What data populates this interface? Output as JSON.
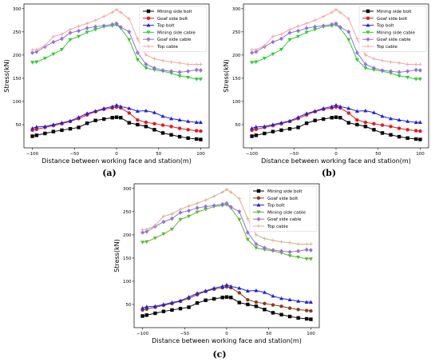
{
  "figure": {
    "panels": [
      "(a)",
      "(b)",
      "(c)"
    ]
  },
  "chart_data": [
    {
      "type": "line",
      "panel_label": "(a)",
      "xlabel": "Distance between working face and station(m)",
      "ylabel": "Stress(kN)",
      "xlim": [
        -110,
        110
      ],
      "ylim": [
        0,
        310
      ],
      "xticks": [
        -100,
        -50,
        0,
        50,
        100
      ],
      "xtick_labels": [
        "−100",
        "−50",
        "0",
        "50",
        "100"
      ],
      "yticks": [
        50,
        100,
        150,
        200,
        250,
        300
      ],
      "ytick_labels": [
        "50",
        "100",
        "150",
        "200",
        "250",
        "300"
      ],
      "legend_position": "top-right",
      "x": [
        -100,
        -95,
        -85,
        -75,
        -65,
        -55,
        -45,
        -35,
        -25,
        -15,
        -5,
        0,
        5,
        15,
        25,
        35,
        45,
        55,
        65,
        75,
        85,
        95,
        100
      ],
      "series": [
        {
          "name": "Mining side bolt",
          "color": "#000000",
          "marker": "square",
          "values": [
            25,
            27,
            31,
            35,
            38,
            41,
            44,
            53,
            59,
            62,
            65,
            66,
            65,
            54,
            50,
            46,
            39,
            32,
            28,
            24,
            21,
            19,
            18
          ]
        },
        {
          "name": "Goaf side bolt",
          "color": "#e31a1c",
          "marker": "circle",
          "values": [
            38,
            40,
            44,
            48,
            52,
            57,
            63,
            71,
            78,
            83,
            86,
            88,
            86,
            75,
            60,
            55,
            52,
            49,
            46,
            42,
            39,
            37,
            36
          ]
        },
        {
          "name": "Top bolt",
          "color": "#1f1fe0",
          "marker": "triangle",
          "values": [
            42,
            45,
            46,
            50,
            54,
            58,
            66,
            74,
            79,
            85,
            89,
            92,
            89,
            85,
            79,
            80,
            76,
            68,
            63,
            60,
            57,
            55,
            55
          ]
        },
        {
          "name": "Mining side cable",
          "color": "#2ecc2e",
          "marker": "triangle-down",
          "values": [
            184,
            185,
            193,
            202,
            212,
            233,
            240,
            249,
            255,
            261,
            263,
            265,
            258,
            233,
            190,
            172,
            168,
            165,
            161,
            155,
            152,
            148,
            148
          ]
        },
        {
          "name": "Goaf side cable",
          "color": "#9370db",
          "marker": "diamond",
          "values": [
            205,
            207,
            218,
            228,
            235,
            248,
            252,
            258,
            261,
            263,
            266,
            268,
            260,
            250,
            205,
            180,
            172,
            167,
            165,
            163,
            165,
            168,
            167
          ]
        },
        {
          "name": "Top cable",
          "color": "#f4a6a0",
          "marker": "plus",
          "values": [
            211,
            212,
            220,
            240,
            245,
            255,
            262,
            268,
            275,
            283,
            292,
            298,
            292,
            278,
            235,
            200,
            192,
            188,
            185,
            183,
            180,
            180,
            180
          ]
        }
      ]
    },
    {
      "type": "line",
      "panel_label": "(b)",
      "xlabel": "Distance between working face and station(m)",
      "ylabel": "Stress(kN)",
      "xlim": [
        -110,
        110
      ],
      "ylim": [
        0,
        310
      ],
      "xticks": [
        -100,
        -50,
        0,
        50,
        100
      ],
      "xtick_labels": [
        "−100",
        "−50",
        "0",
        "50",
        "100"
      ],
      "yticks": [
        50,
        100,
        150,
        200,
        250,
        300
      ],
      "ytick_labels": [
        "50",
        "100",
        "150",
        "200",
        "250",
        "300"
      ],
      "legend_position": "top-right",
      "x": [
        -100,
        -95,
        -85,
        -75,
        -65,
        -55,
        -45,
        -35,
        -25,
        -15,
        -5,
        0,
        5,
        15,
        25,
        35,
        45,
        55,
        65,
        75,
        85,
        95,
        100
      ],
      "series": [
        {
          "name": "Mining side bolt",
          "color": "#000000",
          "marker": "square",
          "values": [
            25,
            27,
            31,
            35,
            38,
            41,
            44,
            53,
            59,
            62,
            65,
            66,
            65,
            54,
            50,
            46,
            39,
            32,
            28,
            24,
            21,
            19,
            18
          ]
        },
        {
          "name": "Goaf side bolt",
          "color": "#e31a1c",
          "marker": "circle",
          "values": [
            38,
            40,
            44,
            48,
            52,
            57,
            63,
            71,
            78,
            83,
            86,
            88,
            86,
            75,
            60,
            55,
            52,
            49,
            46,
            42,
            39,
            37,
            36
          ]
        },
        {
          "name": "Top bolt",
          "color": "#1f1fe0",
          "marker": "triangle",
          "values": [
            42,
            45,
            46,
            50,
            54,
            58,
            66,
            74,
            79,
            85,
            89,
            92,
            89,
            85,
            79,
            80,
            76,
            68,
            63,
            60,
            57,
            55,
            55
          ]
        },
        {
          "name": "Mining side cable",
          "color": "#2ecc2e",
          "marker": "triangle-down",
          "values": [
            184,
            185,
            193,
            202,
            212,
            233,
            240,
            249,
            255,
            261,
            263,
            265,
            258,
            233,
            190,
            172,
            168,
            165,
            161,
            155,
            152,
            148,
            148
          ]
        },
        {
          "name": "Goaf side cable",
          "color": "#9370db",
          "marker": "diamond",
          "values": [
            205,
            207,
            218,
            228,
            235,
            248,
            252,
            258,
            261,
            263,
            266,
            268,
            260,
            250,
            205,
            180,
            172,
            167,
            165,
            163,
            165,
            168,
            167
          ]
        },
        {
          "name": "Top cable",
          "color": "#f4a6a0",
          "marker": "plus",
          "values": [
            211,
            212,
            220,
            240,
            245,
            255,
            262,
            268,
            275,
            283,
            292,
            298,
            292,
            278,
            235,
            200,
            192,
            188,
            185,
            183,
            180,
            180,
            180
          ]
        }
      ]
    },
    {
      "type": "line",
      "panel_label": "(c)",
      "xlabel": "Distance between working face and station(m)",
      "ylabel": "Stress(kN)",
      "xlim": [
        -110,
        110
      ],
      "ylim": [
        0,
        310
      ],
      "xticks": [
        -100,
        -50,
        0,
        50,
        100
      ],
      "xtick_labels": [
        "−100",
        "−50",
        "0",
        "50",
        "100"
      ],
      "yticks": [
        50,
        100,
        150,
        200,
        250,
        300
      ],
      "ytick_labels": [
        "50",
        "100",
        "150",
        "200",
        "250",
        "300"
      ],
      "legend_position": "top-right",
      "x": [
        -100,
        -95,
        -85,
        -75,
        -65,
        -55,
        -45,
        -35,
        -25,
        -15,
        -5,
        0,
        5,
        15,
        25,
        35,
        45,
        55,
        65,
        75,
        85,
        95,
        100
      ],
      "series": [
        {
          "name": "Mining side bolt",
          "color": "#000000",
          "marker": "square",
          "values": [
            25,
            27,
            31,
            35,
            38,
            41,
            44,
            53,
            59,
            62,
            65,
            66,
            65,
            54,
            50,
            46,
            39,
            32,
            28,
            24,
            21,
            19,
            18
          ]
        },
        {
          "name": "Goaf side bolt",
          "color": "#8b3a1a",
          "marker": "circle",
          "values": [
            38,
            40,
            44,
            48,
            52,
            57,
            63,
            71,
            78,
            83,
            86,
            88,
            86,
            75,
            60,
            55,
            52,
            49,
            46,
            42,
            39,
            37,
            36
          ]
        },
        {
          "name": "Top bolt",
          "color": "#1f1fe0",
          "marker": "triangle",
          "values": [
            42,
            45,
            46,
            50,
            54,
            58,
            66,
            74,
            79,
            85,
            89,
            92,
            89,
            85,
            79,
            80,
            76,
            68,
            63,
            60,
            57,
            55,
            55
          ]
        },
        {
          "name": "Mining side cable",
          "color": "#5cb82e",
          "marker": "triangle-down",
          "values": [
            184,
            185,
            193,
            202,
            212,
            233,
            240,
            249,
            255,
            261,
            263,
            265,
            258,
            233,
            190,
            172,
            168,
            165,
            161,
            155,
            152,
            148,
            148
          ]
        },
        {
          "name": "Goaf side cable",
          "color": "#9370db",
          "marker": "diamond",
          "values": [
            205,
            207,
            218,
            228,
            235,
            248,
            252,
            258,
            261,
            263,
            266,
            268,
            260,
            250,
            205,
            180,
            172,
            167,
            165,
            163,
            165,
            168,
            167
          ]
        },
        {
          "name": "Top cable",
          "color": "#d8b08a",
          "marker": "plus",
          "values": [
            211,
            212,
            220,
            240,
            245,
            255,
            262,
            268,
            275,
            283,
            292,
            298,
            292,
            278,
            235,
            200,
            192,
            188,
            185,
            183,
            180,
            180,
            180
          ]
        }
      ]
    }
  ]
}
